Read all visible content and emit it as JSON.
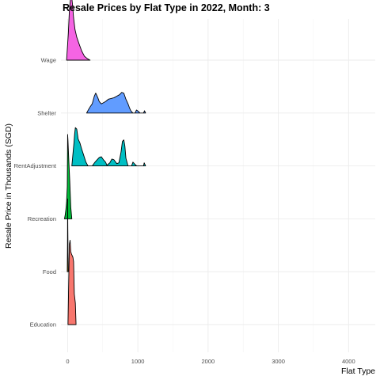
{
  "chart_data": {
    "type": "ridgeline",
    "title": "Resale Prices by Flat Type in 2022, Month: 3",
    "xlabel": "Flat Type",
    "ylabel": "Resale Price in Thousands (SGD)",
    "xlim": [
      -95,
      4380
    ],
    "x_ticks": [
      0,
      1000,
      2000,
      3000,
      4000
    ],
    "x_tick_labels": [
      "0",
      "1000",
      "2000",
      "3000",
      "4000"
    ],
    "grid": true,
    "legend": "none",
    "categories": [
      "Education",
      "Food",
      "Recreation",
      "RentAdjustment",
      "Shelter",
      "Wage"
    ],
    "series": [
      {
        "category": "Education",
        "color": "#F8766D",
        "points": [
          [
            5,
            0
          ],
          [
            15,
            0.55
          ],
          [
            25,
            1.05
          ],
          [
            35,
            1.1
          ],
          [
            45,
            0.95
          ],
          [
            55,
            0.92
          ],
          [
            75,
            0.88
          ],
          [
            85,
            0.82
          ],
          [
            95,
            0.4
          ],
          [
            110,
            0.28
          ],
          [
            120,
            0
          ]
        ]
      },
      {
        "category": "Food",
        "color": "#B79F00",
        "points": [
          [
            -5,
            0
          ],
          [
            -2,
            0.35
          ],
          [
            0,
            0.95
          ],
          [
            3,
            0.55
          ],
          [
            6,
            0.25
          ],
          [
            9,
            0
          ]
        ]
      },
      {
        "category": "Recreation",
        "color": "#00BA38",
        "points": [
          [
            -45,
            0
          ],
          [
            -35,
            0.05
          ],
          [
            -25,
            0.12
          ],
          [
            -15,
            0.22
          ],
          [
            -5,
            0.42
          ],
          [
            0,
            1.1
          ],
          [
            5,
            1.02
          ],
          [
            15,
            0.8
          ],
          [
            30,
            0.5
          ],
          [
            45,
            0.15
          ],
          [
            60,
            0
          ]
        ]
      },
      {
        "category": "RentAdjustment",
        "color": "#00BFC4",
        "points": [
          [
            60,
            0
          ],
          [
            90,
            0.3
          ],
          [
            100,
            0.42
          ],
          [
            110,
            0.5
          ],
          [
            130,
            0.48
          ],
          [
            150,
            0.35
          ],
          [
            175,
            0.3
          ],
          [
            200,
            0.22
          ],
          [
            225,
            0.15
          ],
          [
            260,
            0.05
          ],
          [
            290,
            0
          ],
          [
            350,
            0
          ],
          [
            390,
            0.05
          ],
          [
            420,
            0.08
          ],
          [
            450,
            0.11
          ],
          [
            480,
            0.12
          ],
          [
            510,
            0.08
          ],
          [
            540,
            0.05
          ],
          [
            560,
            0.01
          ],
          [
            600,
            0.04
          ],
          [
            630,
            0.09
          ],
          [
            660,
            0.08
          ],
          [
            700,
            0.03
          ],
          [
            730,
            0.04
          ],
          [
            760,
            0.18
          ],
          [
            780,
            0.32
          ],
          [
            800,
            0.34
          ],
          [
            815,
            0.26
          ],
          [
            830,
            0.1
          ],
          [
            860,
            0
          ],
          [
            910,
            0
          ],
          [
            930,
            0.05
          ],
          [
            960,
            0.02
          ],
          [
            985,
            0
          ],
          [
            1080,
            0
          ],
          [
            1090,
            0.04
          ],
          [
            1110,
            0
          ]
        ]
      },
      {
        "category": "Shelter",
        "color": "#619CFF",
        "points": [
          [
            270,
            0
          ],
          [
            300,
            0.05
          ],
          [
            320,
            0.08
          ],
          [
            350,
            0.12
          ],
          [
            380,
            0.22
          ],
          [
            400,
            0.26
          ],
          [
            430,
            0.2
          ],
          [
            450,
            0.15
          ],
          [
            480,
            0.12
          ],
          [
            500,
            0.13
          ],
          [
            540,
            0.15
          ],
          [
            580,
            0.18
          ],
          [
            620,
            0.19
          ],
          [
            660,
            0.2
          ],
          [
            700,
            0.22
          ],
          [
            740,
            0.24
          ],
          [
            770,
            0.27
          ],
          [
            800,
            0.26
          ],
          [
            830,
            0.18
          ],
          [
            860,
            0.12
          ],
          [
            880,
            0.07
          ],
          [
            900,
            0.03
          ],
          [
            930,
            0
          ],
          [
            960,
            0
          ],
          [
            980,
            0.04
          ],
          [
            1010,
            0.02
          ],
          [
            1030,
            0
          ],
          [
            1080,
            0
          ],
          [
            1095,
            0.03
          ],
          [
            1110,
            0
          ]
        ]
      },
      {
        "category": "Wage",
        "color": "#F564E3",
        "points": [
          [
            -15,
            0
          ],
          [
            10,
            0.35
          ],
          [
            25,
            0.65
          ],
          [
            40,
            0.8
          ],
          [
            55,
            0.85
          ],
          [
            70,
            0.72
          ],
          [
            85,
            0.55
          ],
          [
            105,
            0.4
          ],
          [
            130,
            0.3
          ],
          [
            160,
            0.22
          ],
          [
            200,
            0.12
          ],
          [
            240,
            0.05
          ],
          [
            280,
            0.02
          ],
          [
            320,
            0
          ]
        ]
      }
    ]
  }
}
